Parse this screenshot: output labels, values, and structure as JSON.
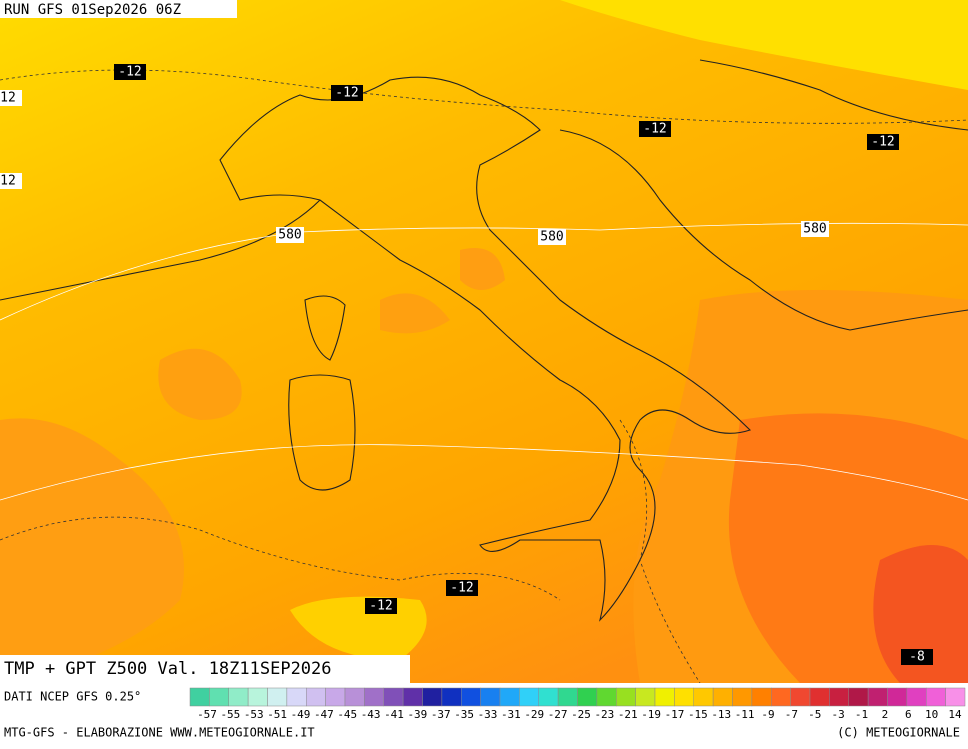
{
  "header": {
    "run": "RUN GFS 01Sep2026 06Z"
  },
  "contour_labels": [
    -12,
    -12,
    -12,
    -12,
    -12,
    -12,
    12,
    12,
    580,
    580,
    580,
    -8
  ],
  "title": "TMP + GPT Z500 Val. 18Z11SEP2026",
  "source": "DATI NCEP GFS 0.25°",
  "scale": {
    "labels": [
      -57,
      -55,
      -53,
      -51,
      -49,
      -47,
      -45,
      -43,
      -41,
      -39,
      -37,
      -35,
      -33,
      -31,
      -29,
      -27,
      -25,
      -23,
      -21,
      -19,
      -17,
      -15,
      -13,
      -11,
      -9,
      -7,
      -5,
      -3,
      -1,
      2,
      6,
      10,
      14
    ]
  },
  "footer": {
    "left": "MTG-GFS - ELABORAZIONE WWW.METEOGIORNALE.IT",
    "right": "(C) METEOGIORNALE"
  }
}
